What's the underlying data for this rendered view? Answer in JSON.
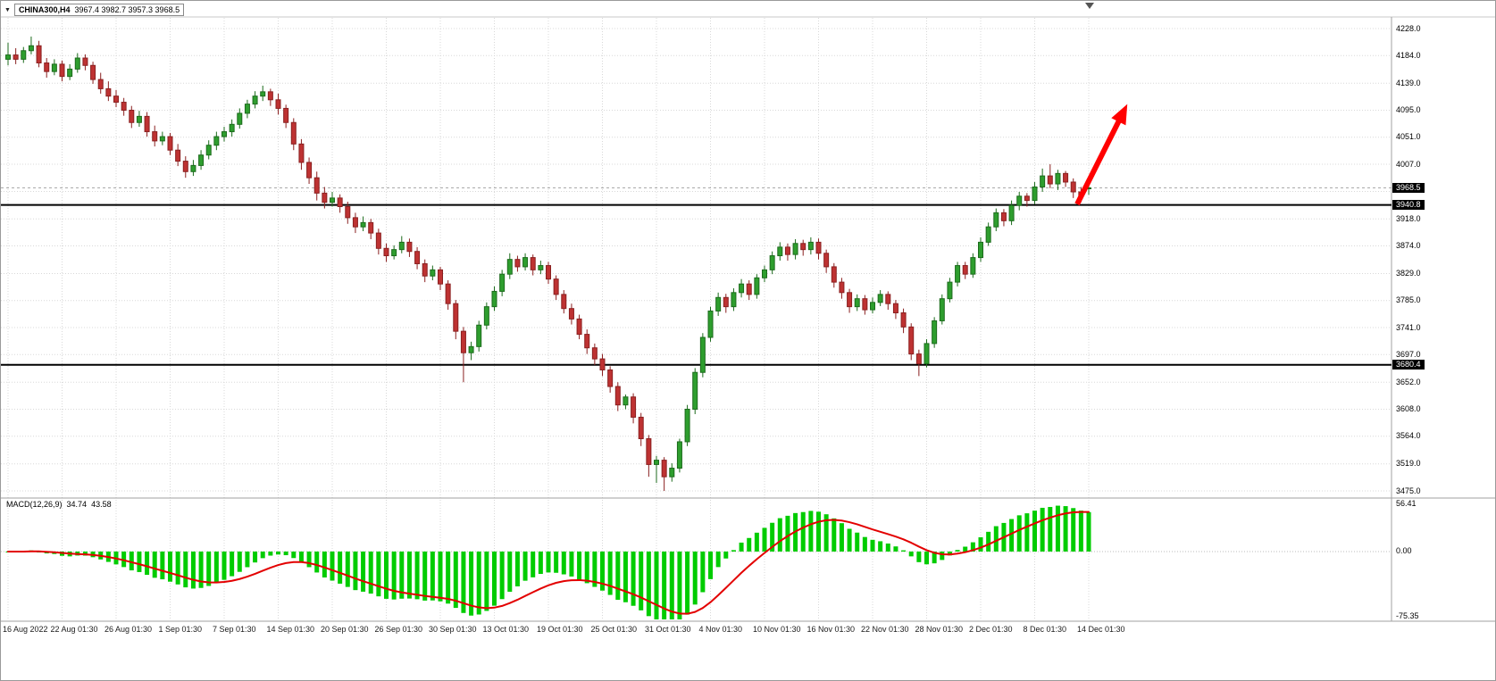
{
  "window": {
    "dropdown_icon": "▼",
    "symbol_label": "CHINA300,H4",
    "ohlc_text": "3967.4 3982.7 3957.3 3968.5"
  },
  "chart_data": {
    "type": "candlestick",
    "title": "CHINA300,H4",
    "symbol": "CHINA300",
    "timeframe": "H4",
    "current_price": 3968.5,
    "current_price_label": "3968.5",
    "last_candle_ohlc": {
      "open": 3967.4,
      "high": 3982.7,
      "low": 3957.3,
      "close": 3968.5
    },
    "price_axis": {
      "levels": [
        4228,
        4184,
        4139,
        4095,
        4051,
        4007,
        3962.7,
        3918,
        3874,
        3829,
        3785,
        3741,
        3697,
        3652,
        3608,
        3564,
        3519,
        3475
      ],
      "labels": [
        "4228.0",
        "4184.0",
        "4139.0",
        "4095.0",
        "4051.0",
        "4007.0",
        "",
        "3918.0",
        "3874.0",
        "3829.0",
        "3785.0",
        "3741.0",
        "3697.0",
        "3652.0",
        "3608.0",
        "3564.0",
        "3519.0",
        "3475.0"
      ],
      "max": 4228,
      "min": 3475
    },
    "time_axis": {
      "labels": [
        "16 Aug 2022",
        "22 Aug 01:30",
        "26 Aug 01:30",
        "1 Sep 01:30",
        "7 Sep 01:30",
        "14 Sep 01:30",
        "20 Sep 01:30",
        "26 Sep 01:30",
        "30 Sep 01:30",
        "13 Oct 01:30",
        "19 Oct 01:30",
        "25 Oct 01:30",
        "31 Oct 01:30",
        "4 Nov 01:30",
        "10 Nov 01:30",
        "16 Nov 01:30",
        "22 Nov 01:30",
        "28 Nov 01:30",
        "2 Dec 01:30",
        "8 Dec 01:30",
        "14 Dec 01:30"
      ],
      "candles_per_label": 7
    },
    "horizontal_lines": [
      {
        "value": 3940.8,
        "label": "3940.8",
        "color": "#000000"
      },
      {
        "value": 3680.4,
        "label": "3680.4",
        "color": "#000000"
      }
    ],
    "indicator": {
      "name": "MACD",
      "label": "MACD(12,26,9)",
      "macd_value": "34.74",
      "signal_value": "43.58",
      "fast": 12,
      "slow": 26,
      "signal": 9,
      "axis_labels": [
        "56.41",
        "0.00",
        "-75.35"
      ],
      "axis_max": 56.41,
      "axis_min": -75.35,
      "histogram_color": "#00CC00",
      "signal_color": "#E30000"
    },
    "annotations": [
      {
        "type": "arrow",
        "color": "#FF0000",
        "from": {
          "index": 138.5,
          "price": 3942
        },
        "to": {
          "index": 145,
          "price": 4105
        }
      }
    ],
    "colors": {
      "background": "#FFFFFF",
      "grid": "#D8D8D8",
      "up_fill": "#2E9E2E",
      "up_stroke": "#1C6B1C",
      "down_fill": "#BE3232",
      "down_stroke": "#8A2020",
      "separator": "#A0A0A0",
      "tag_bg": "#000000",
      "tag_text": "#FFFFFF",
      "bid_line": "#AAAAAA",
      "arrow": "#FF0000"
    },
    "candles": [
      [
        4178,
        4205,
        4168,
        4185
      ],
      [
        4185,
        4196,
        4170,
        4178
      ],
      [
        4178,
        4198,
        4172,
        4192
      ],
      [
        4192,
        4215,
        4186,
        4200
      ],
      [
        4200,
        4208,
        4165,
        4172
      ],
      [
        4172,
        4180,
        4148,
        4158
      ],
      [
        4158,
        4178,
        4152,
        4170
      ],
      [
        4170,
        4176,
        4142,
        4150
      ],
      [
        4150,
        4170,
        4144,
        4162
      ],
      [
        4162,
        4188,
        4156,
        4180
      ],
      [
        4180,
        4186,
        4160,
        4168
      ],
      [
        4168,
        4174,
        4138,
        4145
      ],
      [
        4145,
        4156,
        4122,
        4130
      ],
      [
        4130,
        4142,
        4110,
        4118
      ],
      [
        4118,
        4128,
        4100,
        4108
      ],
      [
        4108,
        4115,
        4086,
        4095
      ],
      [
        4095,
        4102,
        4066,
        4075
      ],
      [
        4075,
        4094,
        4068,
        4085
      ],
      [
        4085,
        4092,
        4052,
        4060
      ],
      [
        4060,
        4070,
        4036,
        4045
      ],
      [
        4045,
        4060,
        4038,
        4052
      ],
      [
        4052,
        4058,
        4022,
        4030
      ],
      [
        4030,
        4040,
        4004,
        4012
      ],
      [
        4012,
        4020,
        3985,
        3995
      ],
      [
        3995,
        4014,
        3988,
        4005
      ],
      [
        4005,
        4030,
        3998,
        4022
      ],
      [
        4022,
        4046,
        4015,
        4038
      ],
      [
        4038,
        4060,
        4030,
        4052
      ],
      [
        4052,
        4068,
        4044,
        4060
      ],
      [
        4060,
        4080,
        4052,
        4072
      ],
      [
        4072,
        4098,
        4065,
        4090
      ],
      [
        4090,
        4112,
        4082,
        4105
      ],
      [
        4105,
        4126,
        4098,
        4118
      ],
      [
        4118,
        4135,
        4110,
        4125
      ],
      [
        4125,
        4130,
        4102,
        4112
      ],
      [
        4112,
        4122,
        4088,
        4098
      ],
      [
        4098,
        4104,
        4066,
        4075
      ],
      [
        4075,
        4082,
        4030,
        4040
      ],
      [
        4040,
        4048,
        3998,
        4010
      ],
      [
        4010,
        4018,
        3975,
        3985
      ],
      [
        3985,
        3995,
        3948,
        3960
      ],
      [
        3960,
        3970,
        3935,
        3945
      ],
      [
        3945,
        3962,
        3938,
        3952
      ],
      [
        3952,
        3958,
        3928,
        3938
      ],
      [
        3938,
        3946,
        3910,
        3920
      ],
      [
        3920,
        3928,
        3895,
        3905
      ],
      [
        3905,
        3922,
        3898,
        3912
      ],
      [
        3912,
        3918,
        3885,
        3895
      ],
      [
        3895,
        3902,
        3860,
        3870
      ],
      [
        3870,
        3878,
        3848,
        3858
      ],
      [
        3858,
        3875,
        3852,
        3868
      ],
      [
        3868,
        3890,
        3862,
        3880
      ],
      [
        3880,
        3886,
        3856,
        3865
      ],
      [
        3865,
        3872,
        3836,
        3845
      ],
      [
        3845,
        3852,
        3815,
        3825
      ],
      [
        3825,
        3842,
        3818,
        3835
      ],
      [
        3835,
        3840,
        3802,
        3812
      ],
      [
        3812,
        3818,
        3770,
        3780
      ],
      [
        3780,
        3786,
        3722,
        3735
      ],
      [
        3735,
        3742,
        3652,
        3700
      ],
      [
        3700,
        3718,
        3688,
        3710
      ],
      [
        3710,
        3752,
        3702,
        3745
      ],
      [
        3745,
        3782,
        3738,
        3775
      ],
      [
        3775,
        3808,
        3768,
        3800
      ],
      [
        3800,
        3835,
        3792,
        3828
      ],
      [
        3828,
        3862,
        3820,
        3852
      ],
      [
        3852,
        3858,
        3832,
        3840
      ],
      [
        3840,
        3862,
        3834,
        3855
      ],
      [
        3855,
        3860,
        3826,
        3835
      ],
      [
        3835,
        3850,
        3828,
        3842
      ],
      [
        3842,
        3848,
        3812,
        3820
      ],
      [
        3820,
        3826,
        3786,
        3795
      ],
      [
        3795,
        3802,
        3764,
        3772
      ],
      [
        3772,
        3780,
        3746,
        3755
      ],
      [
        3755,
        3762,
        3722,
        3730
      ],
      [
        3730,
        3738,
        3698,
        3708
      ],
      [
        3708,
        3715,
        3680,
        3690
      ],
      [
        3690,
        3698,
        3662,
        3672
      ],
      [
        3672,
        3678,
        3635,
        3645
      ],
      [
        3645,
        3652,
        3605,
        3615
      ],
      [
        3615,
        3632,
        3608,
        3628
      ],
      [
        3628,
        3634,
        3585,
        3595
      ],
      [
        3595,
        3602,
        3548,
        3560
      ],
      [
        3560,
        3566,
        3498,
        3518
      ],
      [
        3518,
        3532,
        3488,
        3525
      ],
      [
        3525,
        3530,
        3475,
        3498
      ],
      [
        3498,
        3520,
        3490,
        3512
      ],
      [
        3512,
        3560,
        3505,
        3555
      ],
      [
        3555,
        3615,
        3548,
        3608
      ],
      [
        3608,
        3675,
        3600,
        3668
      ],
      [
        3668,
        3732,
        3660,
        3725
      ],
      [
        3725,
        3775,
        3718,
        3768
      ],
      [
        3768,
        3798,
        3760,
        3790
      ],
      [
        3790,
        3796,
        3765,
        3775
      ],
      [
        3775,
        3805,
        3768,
        3798
      ],
      [
        3798,
        3820,
        3790,
        3812
      ],
      [
        3812,
        3818,
        3786,
        3795
      ],
      [
        3795,
        3828,
        3788,
        3822
      ],
      [
        3822,
        3842,
        3815,
        3835
      ],
      [
        3835,
        3865,
        3828,
        3858
      ],
      [
        3858,
        3880,
        3850,
        3872
      ],
      [
        3872,
        3878,
        3850,
        3860
      ],
      [
        3860,
        3885,
        3852,
        3878
      ],
      [
        3878,
        3884,
        3858,
        3868
      ],
      [
        3868,
        3888,
        3860,
        3880
      ],
      [
        3880,
        3886,
        3852,
        3862
      ],
      [
        3862,
        3868,
        3830,
        3840
      ],
      [
        3840,
        3846,
        3806,
        3815
      ],
      [
        3815,
        3822,
        3788,
        3798
      ],
      [
        3798,
        3804,
        3765,
        3775
      ],
      [
        3775,
        3795,
        3768,
        3788
      ],
      [
        3788,
        3794,
        3762,
        3770
      ],
      [
        3770,
        3790,
        3764,
        3782
      ],
      [
        3782,
        3802,
        3776,
        3795
      ],
      [
        3795,
        3800,
        3770,
        3780
      ],
      [
        3780,
        3786,
        3755,
        3765
      ],
      [
        3765,
        3772,
        3732,
        3742
      ],
      [
        3742,
        3748,
        3688,
        3698
      ],
      [
        3698,
        3705,
        3662,
        3682
      ],
      [
        3682,
        3722,
        3676,
        3715
      ],
      [
        3715,
        3758,
        3708,
        3752
      ],
      [
        3752,
        3795,
        3746,
        3788
      ],
      [
        3788,
        3822,
        3782,
        3815
      ],
      [
        3815,
        3848,
        3808,
        3842
      ],
      [
        3842,
        3848,
        3820,
        3828
      ],
      [
        3828,
        3862,
        3822,
        3855
      ],
      [
        3855,
        3888,
        3848,
        3880
      ],
      [
        3880,
        3912,
        3874,
        3905
      ],
      [
        3905,
        3935,
        3898,
        3928
      ],
      [
        3928,
        3934,
        3906,
        3915
      ],
      [
        3915,
        3948,
        3908,
        3940
      ],
      [
        3940,
        3962,
        3932,
        3955
      ],
      [
        3955,
        3960,
        3938,
        3948
      ],
      [
        3948,
        3978,
        3942,
        3970
      ],
      [
        3970,
        4000,
        3962,
        3988
      ],
      [
        3988,
        4007,
        3968,
        3975
      ],
      [
        3975,
        3998,
        3965,
        3992
      ],
      [
        3992,
        3996,
        3970,
        3978
      ],
      [
        3978,
        3984,
        3952,
        3962
      ],
      [
        3962,
        3970,
        3945,
        3955
      ],
      [
        3967.4,
        3982.7,
        3957.3,
        3968.5
      ]
    ]
  }
}
